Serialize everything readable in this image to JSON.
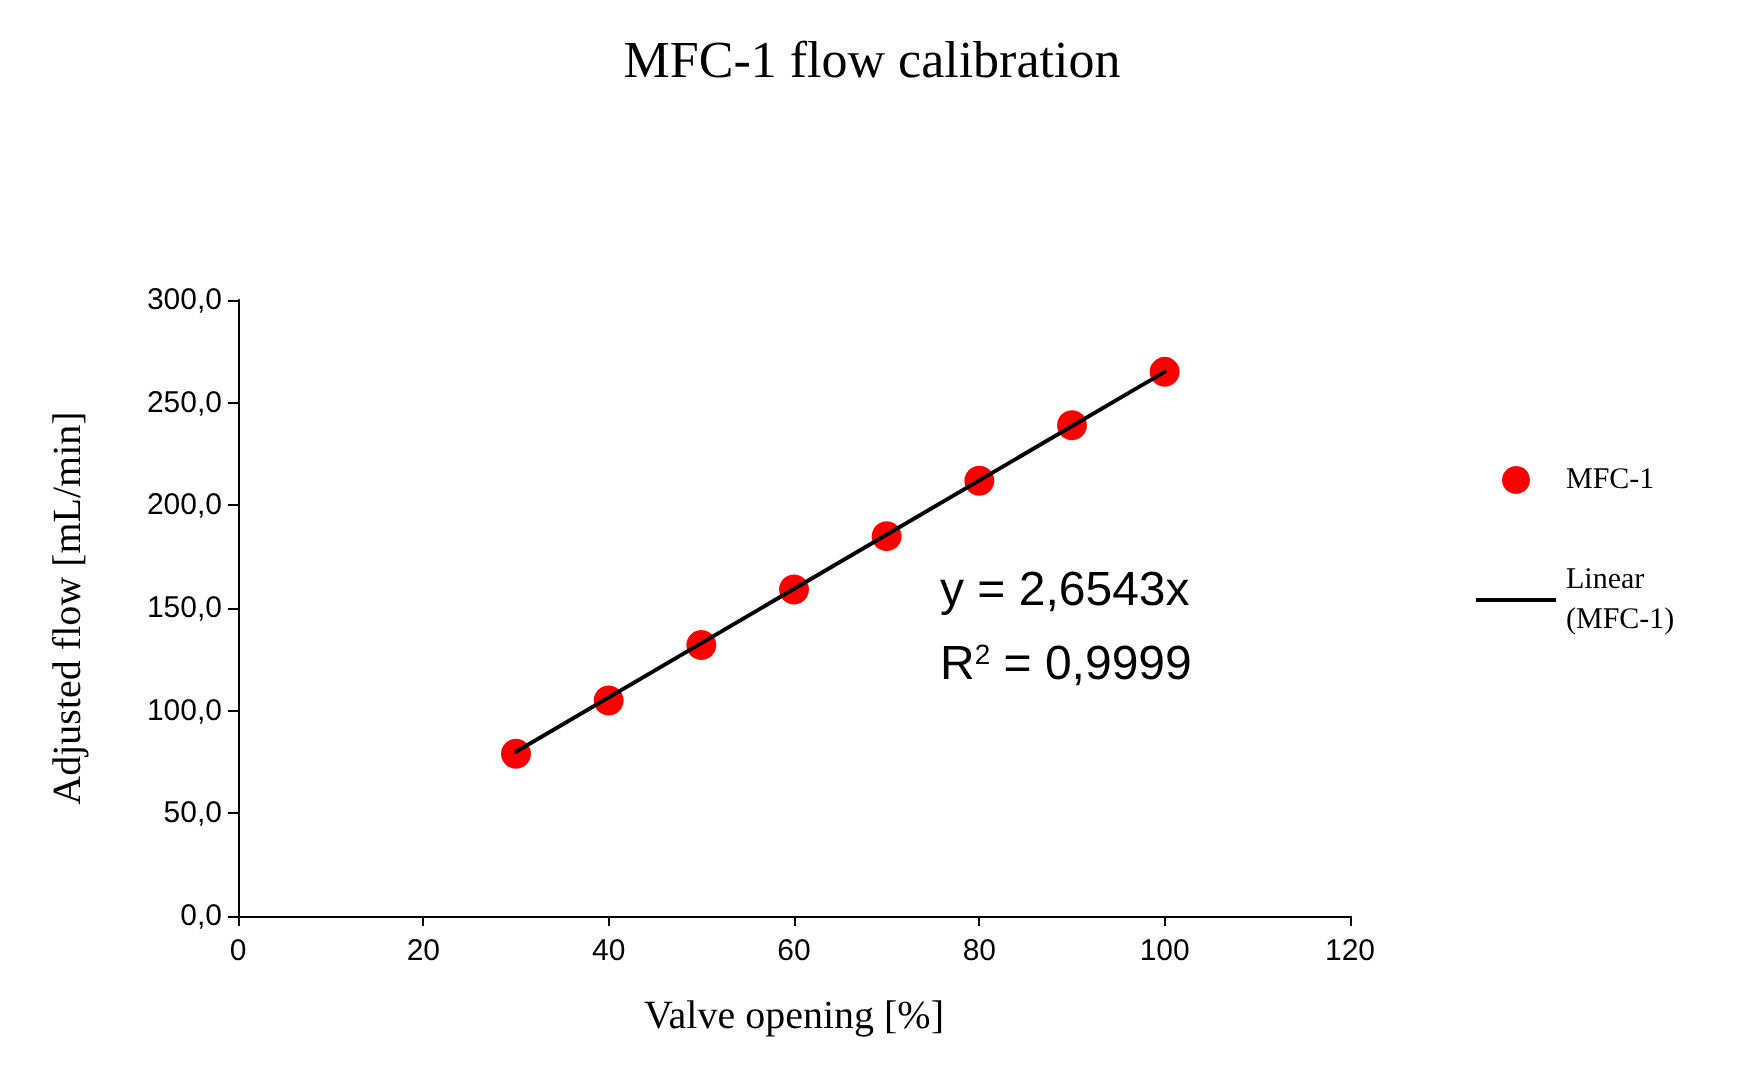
{
  "chart_data": {
    "type": "scatter",
    "title": "MFC-1 flow calibration",
    "xlabel": "Valve opening [%]",
    "ylabel": "Adjusted flow [mL/min]",
    "series": [
      {
        "name": "MFC-1",
        "color": "#ff0000",
        "marker": "circle",
        "x": [
          30,
          40,
          50,
          60,
          70,
          80,
          90,
          100
        ],
        "values": [
          79,
          105,
          132,
          159,
          185,
          212,
          239,
          265
        ]
      },
      {
        "name": "Linear (MFC-1)",
        "type": "line",
        "color": "#000000",
        "marker": "none",
        "line_style": "solid",
        "x": [
          30,
          100
        ],
        "values": [
          80,
          265
        ]
      }
    ],
    "xlim": [
      0,
      120
    ],
    "xticks": [
      0,
      20,
      40,
      60,
      80,
      100,
      120
    ],
    "ylim": [
      0,
      300
    ],
    "yticks": [
      {
        "value": 0,
        "label": "0,0"
      },
      {
        "value": 50,
        "label": "50,0"
      },
      {
        "value": 100,
        "label": "100,0"
      },
      {
        "value": 150,
        "label": "150,0"
      },
      {
        "value": 200,
        "label": "200,0"
      },
      {
        "value": 250,
        "label": "250,0"
      },
      {
        "value": 300,
        "label": "300,0"
      }
    ],
    "annotations": [
      "y = 2,6543x",
      "R$^{2}$ = 0,9999"
    ],
    "grid": false,
    "legend": "right"
  }
}
